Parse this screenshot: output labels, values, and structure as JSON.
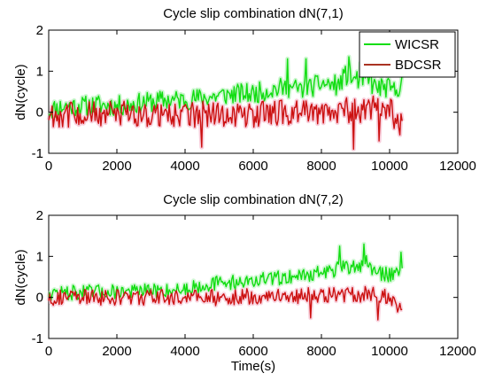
{
  "colors": {
    "wicsr": "#11dd11",
    "bdcsr": "#cc1111",
    "wicsr_haze": "#9ff0a6",
    "bdcsr_haze": "#f3a7bf",
    "legend_bdcsr": "#aa3322",
    "axis": "#000000",
    "background": "#ffffff"
  },
  "chart_data": [
    {
      "type": "line",
      "title": "Cycle slip combination dN(7,1)",
      "xlabel": "",
      "ylabel": "dN(cycle)",
      "xlim": [
        0,
        12000
      ],
      "ylim": [
        -1,
        2
      ],
      "xticks": [
        0,
        2000,
        4000,
        6000,
        8000,
        10000,
        12000
      ],
      "yticks": [
        -1,
        0,
        1,
        2
      ],
      "xtick_labels": [
        "0",
        "2000",
        "4000",
        "6000",
        "8000",
        "10000",
        "12000"
      ],
      "ytick_labels": [
        "-1",
        "0",
        "1",
        "2"
      ],
      "grid": false,
      "legend": {
        "position": "top-right",
        "entries": [
          "WICSR",
          "BDCSR"
        ]
      },
      "series": [
        {
          "name": "WICSR",
          "color_key": "wicsr",
          "x": [
            0,
            500,
            1000,
            1500,
            2000,
            2500,
            3000,
            3500,
            4000,
            4500,
            5000,
            5500,
            6000,
            6500,
            7000,
            7500,
            8000,
            8500,
            8700,
            9000,
            9300,
            9600,
            9900,
            10200,
            10400
          ],
          "y": [
            0.05,
            0.15,
            0.15,
            0.18,
            0.15,
            0.2,
            0.25,
            0.3,
            0.3,
            0.35,
            0.4,
            0.45,
            0.45,
            0.55,
            0.6,
            0.55,
            0.7,
            0.65,
            0.9,
            0.8,
            0.8,
            0.6,
            0.6,
            0.5,
            0.9
          ],
          "noise": 0.25,
          "peaks": [
            [
              7000,
              1.3
            ],
            [
              7550,
              1.3
            ],
            [
              8800,
              1.35
            ],
            [
              9150,
              1.2
            ],
            [
              9450,
              1.15
            ]
          ]
        },
        {
          "name": "BDCSR",
          "color_key": "bdcsr",
          "x": [
            0,
            1000,
            2000,
            3000,
            4000,
            5000,
            6000,
            7000,
            8000,
            8500,
            9000,
            9500,
            10000,
            10400
          ],
          "y": [
            -0.05,
            -0.05,
            -0.05,
            -0.05,
            -0.05,
            -0.05,
            -0.05,
            0.0,
            0.0,
            0.05,
            0.05,
            0.1,
            0.05,
            -0.35
          ],
          "noise": 0.32,
          "troughs": [
            [
              4500,
              -0.85
            ],
            [
              8950,
              -0.9
            ],
            [
              9700,
              -0.7
            ],
            [
              10300,
              -0.55
            ]
          ]
        }
      ]
    },
    {
      "type": "line",
      "title": "Cycle slip combination dN(7,2)",
      "xlabel": "Time(s)",
      "ylabel": "dN(cycle)",
      "xlim": [
        0,
        12000
      ],
      "ylim": [
        -1,
        2
      ],
      "xticks": [
        0,
        2000,
        4000,
        6000,
        8000,
        10000,
        12000
      ],
      "yticks": [
        -1,
        0,
        1,
        2
      ],
      "xtick_labels": [
        "0",
        "2000",
        "4000",
        "6000",
        "8000",
        "10000",
        "12000"
      ],
      "ytick_labels": [
        "-1",
        "0",
        "1",
        "2"
      ],
      "grid": false,
      "series": [
        {
          "name": "WICSR",
          "color_key": "wicsr",
          "x": [
            0,
            1000,
            2000,
            3000,
            4000,
            4500,
            5000,
            6000,
            7000,
            7500,
            8000,
            8500,
            9000,
            9300,
            9600,
            10000,
            10400
          ],
          "y": [
            0.1,
            0.12,
            0.15,
            0.15,
            0.2,
            0.3,
            0.35,
            0.4,
            0.5,
            0.55,
            0.6,
            0.7,
            0.75,
            0.85,
            0.6,
            0.55,
            0.75
          ],
          "noise": 0.18,
          "peaks": [
            [
              8550,
              1.25
            ],
            [
              9250,
              1.3
            ],
            [
              10350,
              1.1
            ]
          ]
        },
        {
          "name": "BDCSR",
          "color_key": "bdcsr",
          "x": [
            0,
            1000,
            2000,
            3000,
            4000,
            5000,
            6000,
            7000,
            8000,
            9000,
            9500,
            10000,
            10400
          ],
          "y": [
            0.0,
            0.0,
            0.0,
            0.0,
            0.0,
            0.0,
            0.02,
            0.05,
            0.05,
            0.08,
            0.05,
            0.0,
            -0.3
          ],
          "noise": 0.2,
          "troughs": [
            [
              7700,
              -0.5
            ],
            [
              9650,
              -0.55
            ],
            [
              10350,
              -0.3
            ]
          ]
        }
      ]
    }
  ]
}
